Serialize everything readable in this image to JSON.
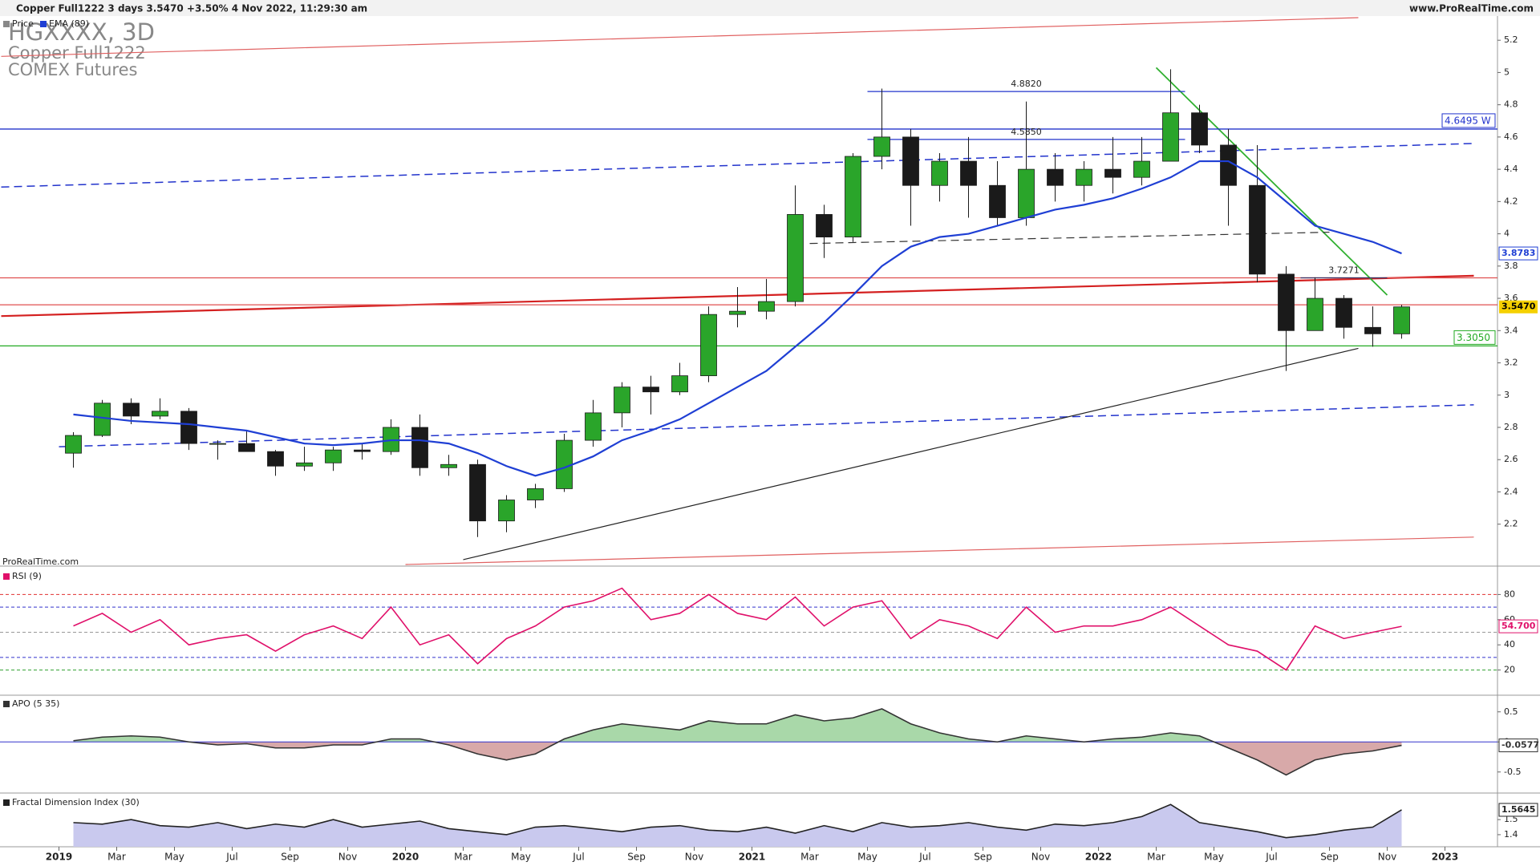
{
  "chart_data": {
    "type": "candlestick",
    "header": "Copper Full1222 3 days 3.5470 +3.50% 4 Nov 2022, 11:29:30 am",
    "source": "www.ProRealTime.com",
    "title": "HGXXXX, 3D",
    "instrument": "Copper Full1222",
    "exchange": "COMEX Futures",
    "watermark": "ProRealTime.com",
    "x": [
      "2019-01",
      "2019-02",
      "2019-03",
      "2019-04",
      "2019-05",
      "2019-06",
      "2019-07",
      "2019-08",
      "2019-09",
      "2019-10",
      "2019-11",
      "2019-12",
      "2020-01",
      "2020-02",
      "2020-03",
      "2020-04",
      "2020-05",
      "2020-06",
      "2020-07",
      "2020-08",
      "2020-09",
      "2020-10",
      "2020-11",
      "2020-12",
      "2021-01",
      "2021-02",
      "2021-03",
      "2021-04",
      "2021-05",
      "2021-06",
      "2021-07",
      "2021-08",
      "2021-09",
      "2021-10",
      "2021-11",
      "2021-12",
      "2022-01",
      "2022-02",
      "2022-03",
      "2022-04",
      "2022-05",
      "2022-06",
      "2022-07",
      "2022-08",
      "2022-09",
      "2022-10",
      "2022-11"
    ],
    "xticks": [
      {
        "value": "2019-01",
        "label": "2019"
      },
      {
        "value": "2019-03",
        "label": "Mar"
      },
      {
        "value": "2019-05",
        "label": "May"
      },
      {
        "value": "2019-07",
        "label": "Jul"
      },
      {
        "value": "2019-09",
        "label": "Sep"
      },
      {
        "value": "2019-11",
        "label": "Nov"
      },
      {
        "value": "2020-01",
        "label": "2020"
      },
      {
        "value": "2020-03",
        "label": "Mar"
      },
      {
        "value": "2020-05",
        "label": "May"
      },
      {
        "value": "2020-07",
        "label": "Jul"
      },
      {
        "value": "2020-09",
        "label": "Sep"
      },
      {
        "value": "2020-11",
        "label": "Nov"
      },
      {
        "value": "2021-01",
        "label": "2021"
      },
      {
        "value": "2021-03",
        "label": "Mar"
      },
      {
        "value": "2021-05",
        "label": "May"
      },
      {
        "value": "2021-07",
        "label": "Jul"
      },
      {
        "value": "2021-09",
        "label": "Sep"
      },
      {
        "value": "2021-11",
        "label": "Nov"
      },
      {
        "value": "2022-01",
        "label": "2022"
      },
      {
        "value": "2022-03",
        "label": "Mar"
      },
      {
        "value": "2022-05",
        "label": "May"
      },
      {
        "value": "2022-07",
        "label": "Jul"
      },
      {
        "value": "2022-09",
        "label": "Sep"
      },
      {
        "value": "2022-11",
        "label": "Nov"
      },
      {
        "value": "2023-01",
        "label": "2023"
      }
    ],
    "price": {
      "name": "Price",
      "up_color": "#2aa52a",
      "down_color": "#1a1a1a",
      "open": [
        2.64,
        2.75,
        2.95,
        2.87,
        2.9,
        2.7,
        2.7,
        2.65,
        2.56,
        2.58,
        2.66,
        2.65,
        2.8,
        2.55,
        2.57,
        2.22,
        2.35,
        2.42,
        2.72,
        2.89,
        3.05,
        3.02,
        3.12,
        3.5,
        3.52,
        3.58,
        4.12,
        3.98,
        4.48,
        4.6,
        4.3,
        4.45,
        4.3,
        4.1,
        4.4,
        4.3,
        4.4,
        4.35,
        4.45,
        4.75,
        4.55,
        4.3,
        3.75,
        3.4,
        3.6,
        3.42,
        3.38
      ],
      "high": [
        2.77,
        2.97,
        2.98,
        2.98,
        2.92,
        2.72,
        2.78,
        2.66,
        2.68,
        2.68,
        2.7,
        2.85,
        2.88,
        2.63,
        2.6,
        2.38,
        2.45,
        2.76,
        2.97,
        3.08,
        3.12,
        3.2,
        3.55,
        3.67,
        3.72,
        4.3,
        4.18,
        4.5,
        4.9,
        4.65,
        4.5,
        4.6,
        4.45,
        4.82,
        4.5,
        4.45,
        4.6,
        4.6,
        5.02,
        4.8,
        4.65,
        4.55,
        3.8,
        3.73,
        3.62,
        3.55,
        3.56
      ],
      "low": [
        2.55,
        2.74,
        2.82,
        2.85,
        2.66,
        2.6,
        2.65,
        2.5,
        2.53,
        2.53,
        2.6,
        2.63,
        2.5,
        2.5,
        2.12,
        2.15,
        2.3,
        2.4,
        2.68,
        2.8,
        2.88,
        3.0,
        3.08,
        3.42,
        3.47,
        3.55,
        3.85,
        3.95,
        4.4,
        4.05,
        4.2,
        4.1,
        4.05,
        4.05,
        4.2,
        4.2,
        4.25,
        4.3,
        4.45,
        4.5,
        4.05,
        3.7,
        3.15,
        3.4,
        3.35,
        3.3,
        3.35
      ],
      "close": [
        2.75,
        2.95,
        2.87,
        2.9,
        2.7,
        2.7,
        2.65,
        2.56,
        2.58,
        2.66,
        2.65,
        2.8,
        2.55,
        2.57,
        2.22,
        2.35,
        2.42,
        2.72,
        2.89,
        3.05,
        3.02,
        3.12,
        3.5,
        3.52,
        3.58,
        4.12,
        3.98,
        4.48,
        4.6,
        4.3,
        4.45,
        4.3,
        4.1,
        4.4,
        4.3,
        4.4,
        4.35,
        4.45,
        4.75,
        4.55,
        4.3,
        3.75,
        3.4,
        3.6,
        3.42,
        3.38,
        3.547
      ],
      "last_label": "3.5470"
    },
    "ema": {
      "name": "EMA (89)",
      "color": "#1f3fd4",
      "values": [
        2.88,
        2.86,
        2.84,
        2.83,
        2.82,
        2.8,
        2.78,
        2.74,
        2.7,
        2.69,
        2.7,
        2.72,
        2.72,
        2.7,
        2.64,
        2.56,
        2.5,
        2.55,
        2.62,
        2.72,
        2.78,
        2.85,
        2.95,
        3.05,
        3.15,
        3.3,
        3.45,
        3.62,
        3.8,
        3.92,
        3.98,
        4.0,
        4.05,
        4.1,
        4.15,
        4.18,
        4.22,
        4.28,
        4.35,
        4.45,
        4.45,
        4.35,
        4.2,
        4.05,
        4.0,
        3.95,
        3.8783
      ],
      "last_label": "3.8783"
    },
    "ylim": [
      1.94,
      5.35
    ],
    "yticks": [
      2.2,
      2.4,
      2.6,
      2.8,
      3,
      3.2,
      3.4,
      3.6,
      3.8,
      4,
      4.2,
      4.4,
      4.6,
      4.8,
      5,
      5.2
    ],
    "levels": [
      {
        "value": 4.6495,
        "color": "#2233cc",
        "label": "4.6495 W"
      },
      {
        "value": 3.305,
        "color": "#22aa22",
        "label": "3.3050"
      },
      {
        "value": 3.727,
        "color": "#e05050"
      },
      {
        "value": 3.56,
        "color": "#e05050"
      }
    ],
    "segments": [
      {
        "from": [
          "2021-05",
          4.882
        ],
        "to": [
          "2022-04",
          4.882
        ],
        "color": "#2233cc",
        "label": "4.8820"
      },
      {
        "from": [
          "2021-05",
          4.585
        ],
        "to": [
          "2022-04",
          4.585
        ],
        "color": "#2233cc",
        "label": "4.5850"
      },
      {
        "from": [
          "2022-08",
          3.727
        ],
        "to": [
          "2022-11",
          3.727
        ],
        "color": "#333366",
        "label": "3.7271"
      }
    ],
    "trendlines": [
      {
        "from": [
          "2018-11",
          5.1
        ],
        "to": [
          "2022-10",
          5.34
        ],
        "color": "#e06060",
        "width": 1.2
      },
      {
        "from": [
          "2020-01",
          1.95
        ],
        "to": [
          "2023-02",
          2.12
        ],
        "color": "#e06060",
        "width": 1.2
      },
      {
        "from": [
          "2018-11",
          3.49
        ],
        "to": [
          "2023-02",
          3.74
        ],
        "color": "#d42020",
        "width": 2.2
      },
      {
        "from": [
          "2018-11",
          4.29
        ],
        "to": [
          "2023-02",
          4.56
        ],
        "color": "#2233cc",
        "width": 1.5,
        "dashed": true
      },
      {
        "from": [
          "2019-01",
          2.68
        ],
        "to": [
          "2023-02",
          2.94
        ],
        "color": "#2233cc",
        "width": 1.5,
        "dashed": true
      },
      {
        "from": [
          "2020-03",
          1.98
        ],
        "to": [
          "2022-10",
          3.29
        ],
        "color": "#222222",
        "width": 1.2
      },
      {
        "from": [
          "2022-03",
          5.03
        ],
        "to": [
          "2022-11",
          3.62
        ],
        "color": "#30b030",
        "width": 1.8
      },
      {
        "from": [
          "2021-03",
          3.94
        ],
        "to": [
          "2022-09",
          4.01
        ],
        "color": "#333333",
        "width": 1.2,
        "dashed": true
      }
    ],
    "rsi": {
      "name": "RSI (9)",
      "color": "#e0106a",
      "values": [
        55,
        65,
        50,
        60,
        40,
        45,
        48,
        35,
        48,
        55,
        45,
        70,
        40,
        48,
        25,
        45,
        55,
        70,
        75,
        85,
        60,
        65,
        80,
        65,
        60,
        78,
        55,
        70,
        75,
        45,
        60,
        55,
        45,
        70,
        50,
        55,
        55,
        60,
        70,
        55,
        40,
        35,
        20,
        55,
        45,
        50,
        54.7
      ],
      "ylim": [
        0,
        100
      ],
      "yticks": [
        20,
        40,
        60,
        80
      ],
      "levels": [
        {
          "value": 80,
          "color": "#e03030"
        },
        {
          "value": 70,
          "color": "#3333cc"
        },
        {
          "value": 50,
          "color": "#999999"
        },
        {
          "value": 30,
          "color": "#3333cc"
        },
        {
          "value": 20,
          "color": "#30a030"
        }
      ],
      "last_label": "54.700"
    },
    "apo": {
      "name": "APO (5 35)",
      "color": "#333333",
      "pos_fill": "#a9d8a9",
      "neg_fill": "#d8a9a9",
      "values": [
        0.02,
        0.08,
        0.1,
        0.08,
        0.0,
        -0.05,
        -0.03,
        -0.1,
        -0.1,
        -0.05,
        -0.05,
        0.05,
        0.05,
        -0.05,
        -0.2,
        -0.3,
        -0.2,
        0.05,
        0.2,
        0.3,
        0.25,
        0.2,
        0.35,
        0.3,
        0.3,
        0.45,
        0.35,
        0.4,
        0.55,
        0.3,
        0.15,
        0.05,
        0.0,
        0.1,
        0.05,
        0.0,
        0.05,
        0.08,
        0.15,
        0.1,
        -0.1,
        -0.3,
        -0.55,
        -0.3,
        -0.2,
        -0.15,
        -0.0577
      ],
      "ylim": [
        -0.85,
        0.75
      ],
      "yticks": [
        -0.5,
        0,
        0.5
      ],
      "last_label": "-0.0577"
    },
    "fdi": {
      "name": "Fractal Dimension Index (30)",
      "color": "#222222",
      "fill": "#c9c9ee",
      "values": [
        1.48,
        1.47,
        1.5,
        1.46,
        1.45,
        1.48,
        1.44,
        1.47,
        1.45,
        1.5,
        1.45,
        1.47,
        1.49,
        1.44,
        1.42,
        1.4,
        1.45,
        1.46,
        1.44,
        1.42,
        1.45,
        1.46,
        1.43,
        1.42,
        1.45,
        1.41,
        1.46,
        1.42,
        1.48,
        1.45,
        1.46,
        1.48,
        1.45,
        1.43,
        1.47,
        1.46,
        1.48,
        1.52,
        1.6,
        1.48,
        1.45,
        1.42,
        1.38,
        1.4,
        1.43,
        1.45,
        1.5645
      ],
      "ylim": [
        1.32,
        1.66
      ],
      "yticks": [
        1.4,
        1.5
      ],
      "last_label": "1.5645"
    }
  }
}
